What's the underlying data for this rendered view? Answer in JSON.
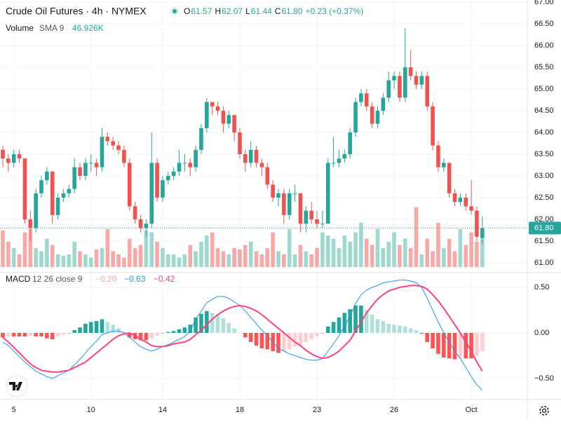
{
  "chart_data": {
    "type": "candlestick",
    "title": "Crude Oil Futures · 4h · NYMEX",
    "ohlc": [
      {
        "key": "O",
        "value": "61.57"
      },
      {
        "key": "H",
        "value": "62.07"
      },
      {
        "key": "L",
        "value": "61.44"
      },
      {
        "key": "C",
        "value": "61.80"
      }
    ],
    "change": "+0.23 (+0.37%)",
    "volume_legend": {
      "name": "Volume",
      "params": "SMA 9",
      "value": "46.926K"
    },
    "macd_legend": {
      "name": "MACD",
      "params": "12 26 close 9",
      "hist": "−0.20",
      "macd": "−0.63",
      "signal": "−0.42"
    },
    "up_color": "#26a69a",
    "down_color": "#ef5350",
    "macd_color": "#2196f3",
    "signal_color": "#ff4081",
    "xticks": [
      {
        "index": 2,
        "label": "5"
      },
      {
        "index": 16,
        "label": "10"
      },
      {
        "index": 29,
        "label": "14"
      },
      {
        "index": 43,
        "label": "18"
      },
      {
        "index": 57,
        "label": "23"
      },
      {
        "index": 71,
        "label": "26"
      },
      {
        "index": 85,
        "label": "Oct"
      }
    ],
    "ylim": [
      61,
      67
    ],
    "yticks": [
      {
        "value": 61,
        "label": "61.00"
      },
      {
        "value": 61.5,
        "label": "61.50"
      },
      {
        "value": 62,
        "label": "62.00"
      },
      {
        "value": 62.5,
        "label": "62.50"
      },
      {
        "value": 63,
        "label": "63.00"
      },
      {
        "value": 63.5,
        "label": "63.50"
      },
      {
        "value": 64,
        "label": "64.00"
      },
      {
        "value": 64.5,
        "label": "64.50"
      },
      {
        "value": 65,
        "label": "65.00"
      },
      {
        "value": 65.5,
        "label": "65.50"
      },
      {
        "value": 66,
        "label": "66.00"
      },
      {
        "value": 66.5,
        "label": "66.50"
      },
      {
        "value": 67,
        "label": "67.00"
      }
    ],
    "last_price": {
      "value": 61.8,
      "label": "61.80"
    },
    "candles": [
      [
        63.6,
        63.7,
        63.2,
        63.4
      ],
      [
        63.4,
        63.5,
        63.1,
        63.3
      ],
      [
        63.3,
        63.6,
        63.2,
        63.5
      ],
      [
        63.5,
        63.6,
        63.3,
        63.4
      ],
      [
        63.4,
        63.4,
        61.9,
        62.0
      ],
      [
        62.0,
        62.2,
        61.5,
        61.8
      ],
      [
        61.8,
        62.7,
        61.7,
        62.6
      ],
      [
        62.6,
        63.0,
        62.5,
        62.9
      ],
      [
        62.9,
        63.2,
        62.8,
        63.1
      ],
      [
        63.1,
        63.1,
        61.9,
        62.1
      ],
      [
        62.1,
        62.6,
        62.0,
        62.5
      ],
      [
        62.5,
        62.7,
        62.4,
        62.6
      ],
      [
        62.6,
        62.8,
        62.5,
        62.7
      ],
      [
        62.7,
        63.4,
        62.6,
        63.2
      ],
      [
        63.2,
        63.3,
        62.9,
        63.0
      ],
      [
        63.0,
        63.4,
        62.9,
        63.3
      ],
      [
        63.3,
        63.5,
        63.1,
        63.3
      ],
      [
        63.3,
        63.4,
        63.0,
        63.2
      ],
      [
        63.2,
        64.1,
        63.1,
        63.9
      ],
      [
        63.9,
        64.0,
        63.7,
        63.8
      ],
      [
        63.8,
        63.9,
        63.6,
        63.7
      ],
      [
        63.7,
        63.8,
        63.5,
        63.6
      ],
      [
        63.6,
        63.7,
        63.2,
        63.3
      ],
      [
        63.3,
        63.4,
        62.2,
        62.3
      ],
      [
        62.3,
        62.4,
        61.9,
        62.0
      ],
      [
        62.0,
        62.1,
        61.7,
        61.8
      ],
      [
        61.8,
        62.0,
        61.6,
        61.9
      ],
      [
        61.9,
        64.0,
        61.8,
        63.3
      ],
      [
        63.3,
        63.4,
        62.4,
        62.5
      ],
      [
        62.5,
        63.0,
        62.4,
        62.9
      ],
      [
        62.9,
        63.1,
        62.8,
        63.0
      ],
      [
        63.0,
        63.2,
        62.9,
        63.1
      ],
      [
        63.1,
        63.6,
        63.0,
        63.3
      ],
      [
        63.3,
        63.5,
        63.1,
        63.3
      ],
      [
        63.3,
        63.4,
        63.0,
        63.2
      ],
      [
        63.2,
        63.7,
        63.1,
        63.6
      ],
      [
        63.6,
        64.2,
        63.5,
        64.1
      ],
      [
        64.1,
        64.8,
        64.0,
        64.7
      ],
      [
        64.7,
        64.7,
        64.4,
        64.6
      ],
      [
        64.6,
        64.7,
        64.4,
        64.5
      ],
      [
        64.5,
        64.6,
        64.0,
        64.2
      ],
      [
        64.2,
        64.5,
        64.1,
        64.4
      ],
      [
        64.4,
        64.4,
        63.8,
        64.0
      ],
      [
        64.0,
        64.1,
        63.4,
        63.5
      ],
      [
        63.5,
        63.6,
        63.1,
        63.3
      ],
      [
        63.3,
        63.8,
        63.2,
        63.6
      ],
      [
        63.6,
        63.7,
        63.2,
        63.3
      ],
      [
        63.3,
        63.4,
        63.0,
        63.2
      ],
      [
        63.2,
        63.3,
        62.7,
        62.8
      ],
      [
        62.8,
        62.9,
        62.4,
        62.5
      ],
      [
        62.5,
        62.7,
        62.3,
        62.6
      ],
      [
        62.6,
        62.7,
        61.9,
        62.1
      ],
      [
        62.1,
        62.7,
        62.0,
        62.6
      ],
      [
        62.6,
        62.8,
        62.4,
        62.6
      ],
      [
        62.6,
        62.6,
        61.7,
        61.9
      ],
      [
        61.9,
        62.3,
        61.7,
        62.2
      ],
      [
        62.2,
        62.4,
        61.9,
        62.0
      ],
      [
        62.0,
        62.2,
        61.8,
        61.9
      ],
      [
        61.9,
        62.2,
        61.8,
        61.9
      ],
      [
        61.9,
        63.4,
        61.9,
        63.3
      ],
      [
        63.3,
        63.9,
        63.2,
        63.3
      ],
      [
        63.3,
        63.6,
        63.2,
        63.4
      ],
      [
        63.4,
        63.6,
        63.3,
        63.5
      ],
      [
        63.5,
        64.1,
        63.4,
        64.0
      ],
      [
        64.0,
        64.8,
        63.9,
        64.7
      ],
      [
        64.7,
        65.0,
        64.6,
        64.9
      ],
      [
        64.9,
        65.0,
        64.5,
        64.6
      ],
      [
        64.6,
        64.7,
        64.1,
        64.2
      ],
      [
        64.2,
        64.6,
        64.1,
        64.5
      ],
      [
        64.5,
        64.9,
        64.4,
        64.8
      ],
      [
        64.8,
        65.4,
        64.7,
        65.2
      ],
      [
        65.2,
        65.4,
        65.0,
        65.3
      ],
      [
        65.3,
        65.4,
        64.7,
        64.8
      ],
      [
        64.8,
        66.4,
        64.7,
        65.5
      ],
      [
        65.5,
        65.9,
        65.2,
        65.3
      ],
      [
        65.3,
        65.4,
        65.0,
        65.1
      ],
      [
        65.1,
        65.4,
        65.0,
        65.3
      ],
      [
        65.3,
        65.4,
        64.5,
        64.6
      ],
      [
        64.6,
        64.7,
        63.6,
        63.7
      ],
      [
        63.7,
        63.8,
        63.1,
        63.2
      ],
      [
        63.2,
        63.4,
        63.1,
        63.3
      ],
      [
        63.3,
        63.3,
        62.5,
        62.6
      ],
      [
        62.6,
        62.7,
        62.3,
        62.4
      ],
      [
        62.4,
        62.6,
        62.3,
        62.5
      ],
      [
        62.5,
        62.6,
        62.2,
        62.3
      ],
      [
        62.3,
        62.9,
        62.1,
        62.2
      ],
      [
        62.2,
        62.3,
        61.5,
        61.6
      ],
      [
        61.57,
        62.07,
        61.44,
        61.8
      ]
    ],
    "volume": [
      58,
      40,
      30,
      20,
      55,
      60,
      30,
      25,
      45,
      35,
      20,
      18,
      20,
      40,
      25,
      20,
      15,
      28,
      30,
      60,
      25,
      20,
      15,
      45,
      30,
      35,
      58,
      55,
      40,
      30,
      20,
      20,
      15,
      20,
      35,
      25,
      40,
      50,
      55,
      30,
      25,
      20,
      30,
      28,
      35,
      40,
      25,
      20,
      30,
      55,
      25,
      20,
      60,
      20,
      35,
      25,
      20,
      30,
      55,
      50,
      45,
      30,
      50,
      40,
      55,
      70,
      45,
      35,
      60,
      30,
      40,
      55,
      35,
      45,
      30,
      95,
      20,
      45,
      25,
      70,
      30,
      45,
      25,
      60,
      35,
      55,
      40,
      45
    ],
    "macd_ylim": [
      -0.75,
      0.6
    ],
    "macd_yticks": [
      {
        "value": 0.5,
        "label": "0.50"
      },
      {
        "value": 0,
        "label": "0.00"
      },
      {
        "value": -0.5,
        "label": "−0.50"
      }
    ],
    "macd": [
      -0.1,
      -0.14,
      -0.2,
      -0.26,
      -0.32,
      -0.37,
      -0.42,
      -0.45,
      -0.48,
      -0.5,
      -0.47,
      -0.44,
      -0.41,
      -0.35,
      -0.29,
      -0.22,
      -0.15,
      -0.09,
      -0.02,
      0.0,
      0.02,
      0.02,
      0.0,
      -0.05,
      -0.1,
      -0.15,
      -0.18,
      -0.2,
      -0.18,
      -0.15,
      -0.13,
      -0.1,
      -0.07,
      -0.04,
      0.02,
      0.15,
      0.24,
      0.33,
      0.37,
      0.4,
      0.4,
      0.38,
      0.34,
      0.3,
      0.24,
      0.17,
      0.1,
      0.03,
      -0.03,
      -0.1,
      -0.17,
      -0.2,
      -0.23,
      -0.25,
      -0.27,
      -0.29,
      -0.3,
      -0.3,
      -0.28,
      -0.2,
      -0.12,
      -0.03,
      0.08,
      0.18,
      0.32,
      0.42,
      0.47,
      0.5,
      0.52,
      0.55,
      0.56,
      0.57,
      0.58,
      0.58,
      0.57,
      0.55,
      0.5,
      0.38,
      0.25,
      0.12,
      0.0,
      -0.1,
      -0.2,
      -0.28,
      -0.38,
      -0.48,
      -0.57,
      -0.63
    ],
    "signal": [
      -0.05,
      -0.1,
      -0.16,
      -0.22,
      -0.28,
      -0.34,
      -0.38,
      -0.41,
      -0.42,
      -0.43,
      -0.43,
      -0.42,
      -0.41,
      -0.38,
      -0.35,
      -0.32,
      -0.27,
      -0.22,
      -0.17,
      -0.12,
      -0.07,
      -0.03,
      -0.01,
      0.0,
      -0.03,
      -0.07,
      -0.1,
      -0.14,
      -0.15,
      -0.15,
      -0.14,
      -0.12,
      -0.11,
      -0.1,
      -0.07,
      -0.02,
      0.03,
      0.09,
      0.15,
      0.2,
      0.24,
      0.27,
      0.29,
      0.3,
      0.29,
      0.27,
      0.24,
      0.2,
      0.15,
      0.1,
      0.05,
      0.0,
      -0.05,
      -0.1,
      -0.14,
      -0.19,
      -0.23,
      -0.26,
      -0.28,
      -0.27,
      -0.24,
      -0.2,
      -0.14,
      -0.08,
      0.02,
      0.12,
      0.22,
      0.3,
      0.37,
      0.42,
      0.46,
      0.48,
      0.5,
      0.51,
      0.52,
      0.52,
      0.51,
      0.48,
      0.42,
      0.35,
      0.27,
      0.18,
      0.09,
      0.0,
      -0.1,
      -0.2,
      -0.32,
      -0.42
    ],
    "hist": [
      -0.05,
      -0.04,
      -0.04,
      -0.04,
      -0.04,
      -0.03,
      -0.04,
      -0.04,
      -0.06,
      -0.07,
      -0.04,
      -0.02,
      0.0,
      0.03,
      0.06,
      0.1,
      0.12,
      0.13,
      0.15,
      0.12,
      0.09,
      0.05,
      0.01,
      -0.05,
      -0.07,
      -0.08,
      -0.08,
      -0.06,
      -0.03,
      0.0,
      0.01,
      0.02,
      0.04,
      0.06,
      0.09,
      0.17,
      0.21,
      0.24,
      0.22,
      0.2,
      0.16,
      0.11,
      0.05,
      0.0,
      -0.05,
      -0.1,
      -0.14,
      -0.17,
      -0.18,
      -0.2,
      -0.22,
      -0.2,
      -0.18,
      -0.15,
      -0.13,
      -0.1,
      -0.07,
      -0.04,
      0.0,
      0.07,
      0.12,
      0.17,
      0.22,
      0.26,
      0.3,
      0.3,
      0.25,
      0.2,
      0.15,
      0.13,
      0.1,
      0.09,
      0.08,
      0.07,
      0.05,
      0.03,
      -0.01,
      -0.1,
      -0.17,
      -0.23,
      -0.27,
      -0.28,
      -0.29,
      -0.28,
      -0.28,
      -0.28,
      -0.25,
      -0.2
    ],
    "grid": true
  }
}
